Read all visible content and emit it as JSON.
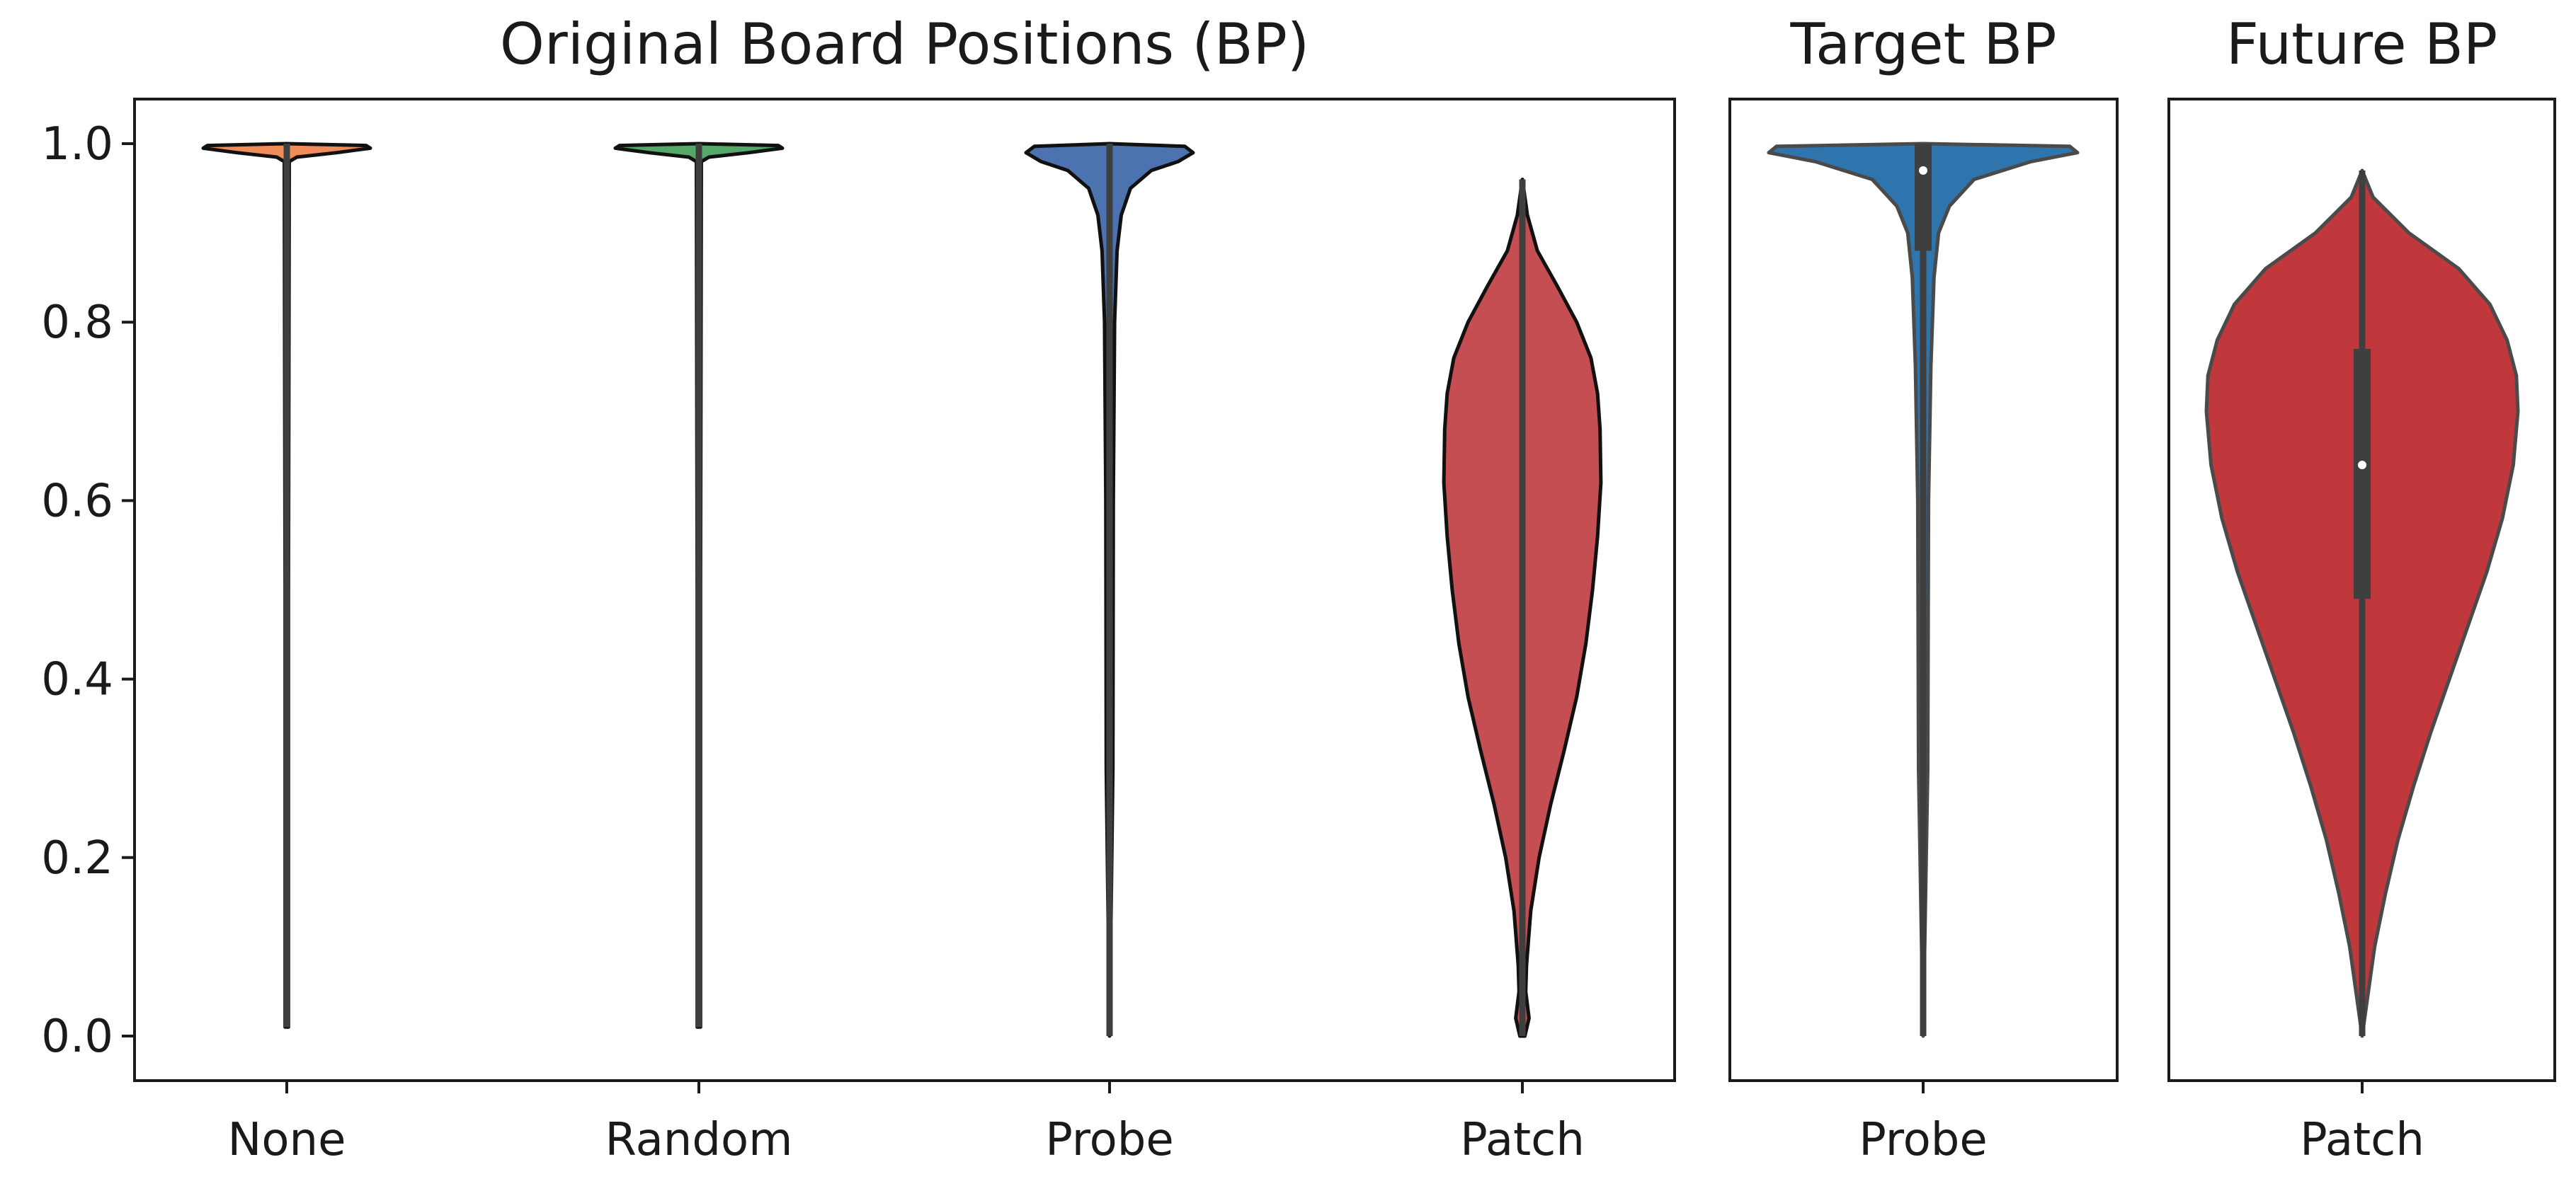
{
  "chart_data": [
    {
      "type": "violin",
      "title": "Original Board Positions (BP)",
      "xlabel": "",
      "ylabel": "",
      "ylim": [
        -0.05,
        1.05
      ],
      "yticks": [
        "0.0",
        "0.2",
        "0.4",
        "0.6",
        "0.8",
        "1.0"
      ],
      "categories": [
        "None",
        "Random",
        "Probe",
        "Patch"
      ],
      "series": [
        {
          "category": "None",
          "color": "#f08c5a",
          "min": 0.01,
          "max": 1.0,
          "profile": [
            [
              1.0,
              0.0
            ],
            [
              0.998,
              0.95
            ],
            [
              0.995,
              1.0
            ],
            [
              0.99,
              0.6
            ],
            [
              0.985,
              0.12
            ],
            [
              0.98,
              0.03
            ],
            [
              0.5,
              0.02
            ],
            [
              0.01,
              0.02
            ]
          ]
        },
        {
          "category": "Random",
          "color": "#55a868",
          "min": 0.01,
          "max": 1.0,
          "profile": [
            [
              1.0,
              0.0
            ],
            [
              0.998,
              0.95
            ],
            [
              0.995,
              1.0
            ],
            [
              0.99,
              0.6
            ],
            [
              0.985,
              0.12
            ],
            [
              0.98,
              0.03
            ],
            [
              0.5,
              0.02
            ],
            [
              0.01,
              0.02
            ]
          ]
        },
        {
          "category": "Probe",
          "color": "#4c72b0",
          "min": 0.0,
          "max": 1.0,
          "profile": [
            [
              1.0,
              0.0
            ],
            [
              0.997,
              0.9
            ],
            [
              0.99,
              1.0
            ],
            [
              0.98,
              0.82
            ],
            [
              0.97,
              0.5
            ],
            [
              0.95,
              0.25
            ],
            [
              0.92,
              0.14
            ],
            [
              0.88,
              0.09
            ],
            [
              0.8,
              0.06
            ],
            [
              0.6,
              0.045
            ],
            [
              0.3,
              0.04
            ],
            [
              0.0,
              0.0
            ]
          ]
        },
        {
          "category": "Patch",
          "color": "#c44e52",
          "min": 0.0,
          "max": 0.96,
          "profile": [
            [
              0.96,
              0.0
            ],
            [
              0.92,
              0.06
            ],
            [
              0.88,
              0.18
            ],
            [
              0.84,
              0.42
            ],
            [
              0.8,
              0.65
            ],
            [
              0.76,
              0.82
            ],
            [
              0.72,
              0.9
            ],
            [
              0.68,
              0.93
            ],
            [
              0.62,
              0.94
            ],
            [
              0.56,
              0.9
            ],
            [
              0.5,
              0.84
            ],
            [
              0.44,
              0.76
            ],
            [
              0.38,
              0.65
            ],
            [
              0.32,
              0.5
            ],
            [
              0.26,
              0.34
            ],
            [
              0.2,
              0.2
            ],
            [
              0.14,
              0.1
            ],
            [
              0.08,
              0.05
            ],
            [
              0.05,
              0.04
            ],
            [
              0.02,
              0.08
            ],
            [
              0.0,
              0.03
            ]
          ]
        }
      ]
    },
    {
      "type": "violin",
      "title": "Target BP",
      "ylim": [
        -0.05,
        1.05
      ],
      "categories": [
        "Probe"
      ],
      "series": [
        {
          "category": "Probe",
          "color": "#2e74ad",
          "min": 0.0,
          "max": 1.0,
          "median": 0.97,
          "q1": 0.88,
          "q3": 1.0,
          "profile": [
            [
              1.0,
              0.0
            ],
            [
              0.997,
              0.95
            ],
            [
              0.99,
              1.0
            ],
            [
              0.98,
              0.7
            ],
            [
              0.96,
              0.33
            ],
            [
              0.93,
              0.17
            ],
            [
              0.9,
              0.1
            ],
            [
              0.85,
              0.07
            ],
            [
              0.75,
              0.05
            ],
            [
              0.6,
              0.035
            ],
            [
              0.3,
              0.03
            ],
            [
              0.0,
              0.0
            ]
          ]
        }
      ]
    },
    {
      "type": "violin",
      "title": "Future BP",
      "ylim": [
        -0.05,
        1.05
      ],
      "categories": [
        "Patch"
      ],
      "series": [
        {
          "category": "Patch",
          "color": "#c0383c",
          "min": 0.0,
          "max": 0.97,
          "median": 0.64,
          "q1": 0.49,
          "q3": 0.77,
          "profile": [
            [
              0.97,
              0.0
            ],
            [
              0.94,
              0.07
            ],
            [
              0.9,
              0.3
            ],
            [
              0.86,
              0.62
            ],
            [
              0.82,
              0.82
            ],
            [
              0.78,
              0.93
            ],
            [
              0.74,
              0.99
            ],
            [
              0.7,
              1.0
            ],
            [
              0.64,
              0.97
            ],
            [
              0.58,
              0.9
            ],
            [
              0.52,
              0.8
            ],
            [
              0.46,
              0.68
            ],
            [
              0.4,
              0.56
            ],
            [
              0.34,
              0.44
            ],
            [
              0.28,
              0.33
            ],
            [
              0.22,
              0.23
            ],
            [
              0.16,
              0.15
            ],
            [
              0.1,
              0.08
            ],
            [
              0.05,
              0.04
            ],
            [
              0.0,
              0.0
            ]
          ]
        }
      ]
    }
  ]
}
